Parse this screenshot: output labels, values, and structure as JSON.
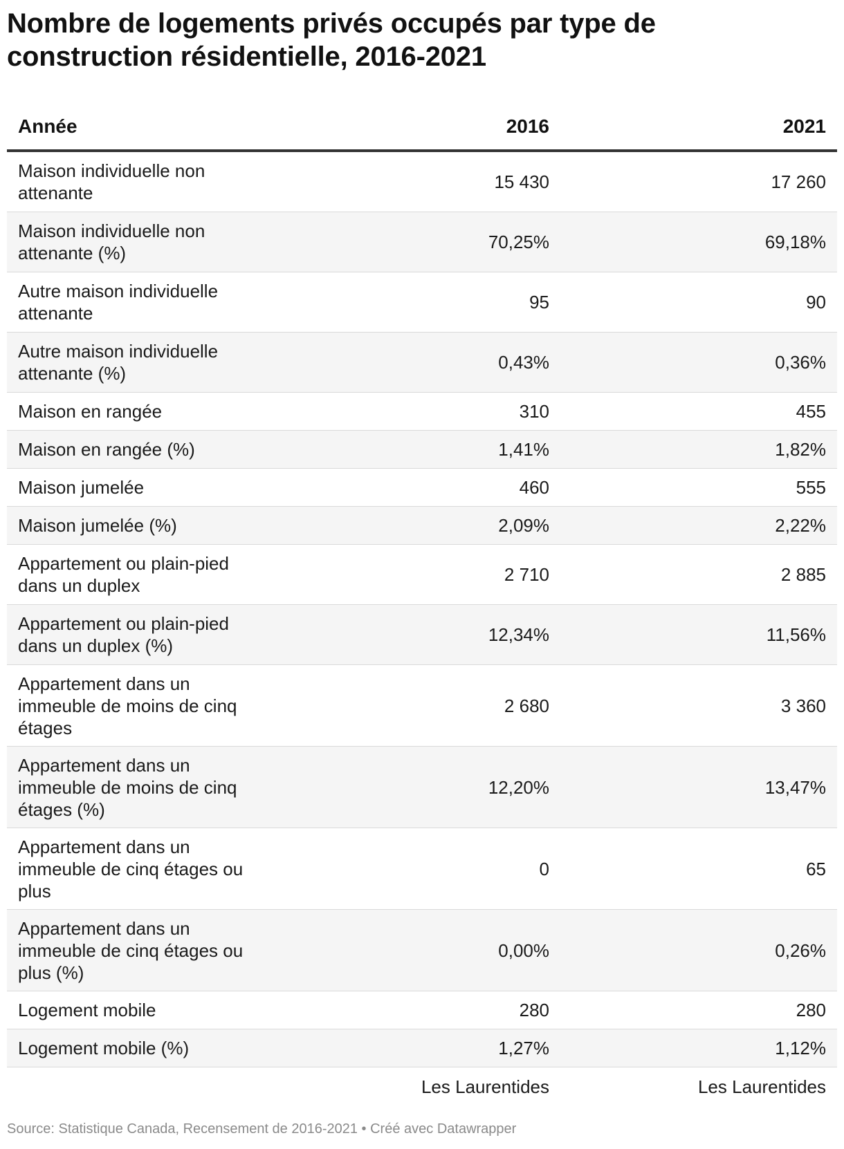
{
  "title_line1": "Nombre de logements privés occupés par type de",
  "title_line2": "construction résidentielle, 2016-2021",
  "source": "Source: Statistique Canada, Recensement de 2016-2021 • Créé avec Datawrapper",
  "chart_data": {
    "type": "table",
    "columns": [
      "Année",
      "2016",
      "2021"
    ],
    "rows": [
      {
        "label": "Maison individuelle non attenante",
        "v2016": "15 430",
        "v2021": "17 260"
      },
      {
        "label": "Maison individuelle non attenante (%)",
        "v2016": "70,25%",
        "v2021": "69,18%"
      },
      {
        "label": "Autre maison individuelle attenante",
        "v2016": "95",
        "v2021": "90"
      },
      {
        "label": "Autre maison individuelle attenante (%)",
        "v2016": "0,43%",
        "v2021": "0,36%"
      },
      {
        "label": "Maison en rangée",
        "v2016": "310",
        "v2021": "455"
      },
      {
        "label": "Maison en rangée (%)",
        "v2016": "1,41%",
        "v2021": "1,82%"
      },
      {
        "label": "Maison jumelée",
        "v2016": "460",
        "v2021": "555"
      },
      {
        "label": "Maison jumelée (%)",
        "v2016": "2,09%",
        "v2021": "2,22%"
      },
      {
        "label": "Appartement ou plain-pied dans un duplex",
        "v2016": "2 710",
        "v2021": "2 885"
      },
      {
        "label": "Appartement ou plain-pied dans un duplex (%)",
        "v2016": "12,34%",
        "v2021": "11,56%"
      },
      {
        "label": "Appartement dans un immeuble de moins de cinq étages",
        "v2016": "2 680",
        "v2021": "3 360"
      },
      {
        "label": "Appartement dans un immeuble de moins de cinq étages (%)",
        "v2016": "12,20%",
        "v2021": "13,47%"
      },
      {
        "label": "Appartement dans un immeuble de cinq étages ou plus",
        "v2016": "0",
        "v2021": "65"
      },
      {
        "label": "Appartement dans un immeuble de cinq étages ou plus (%)",
        "v2016": "0,00%",
        "v2021": "0,26%"
      },
      {
        "label": "Logement mobile",
        "v2016": "280",
        "v2021": "280"
      },
      {
        "label": "Logement mobile (%)",
        "v2016": "1,27%",
        "v2021": "1,12%"
      }
    ],
    "footer": [
      "",
      "Les Laurentides",
      "Les Laurentides"
    ]
  }
}
